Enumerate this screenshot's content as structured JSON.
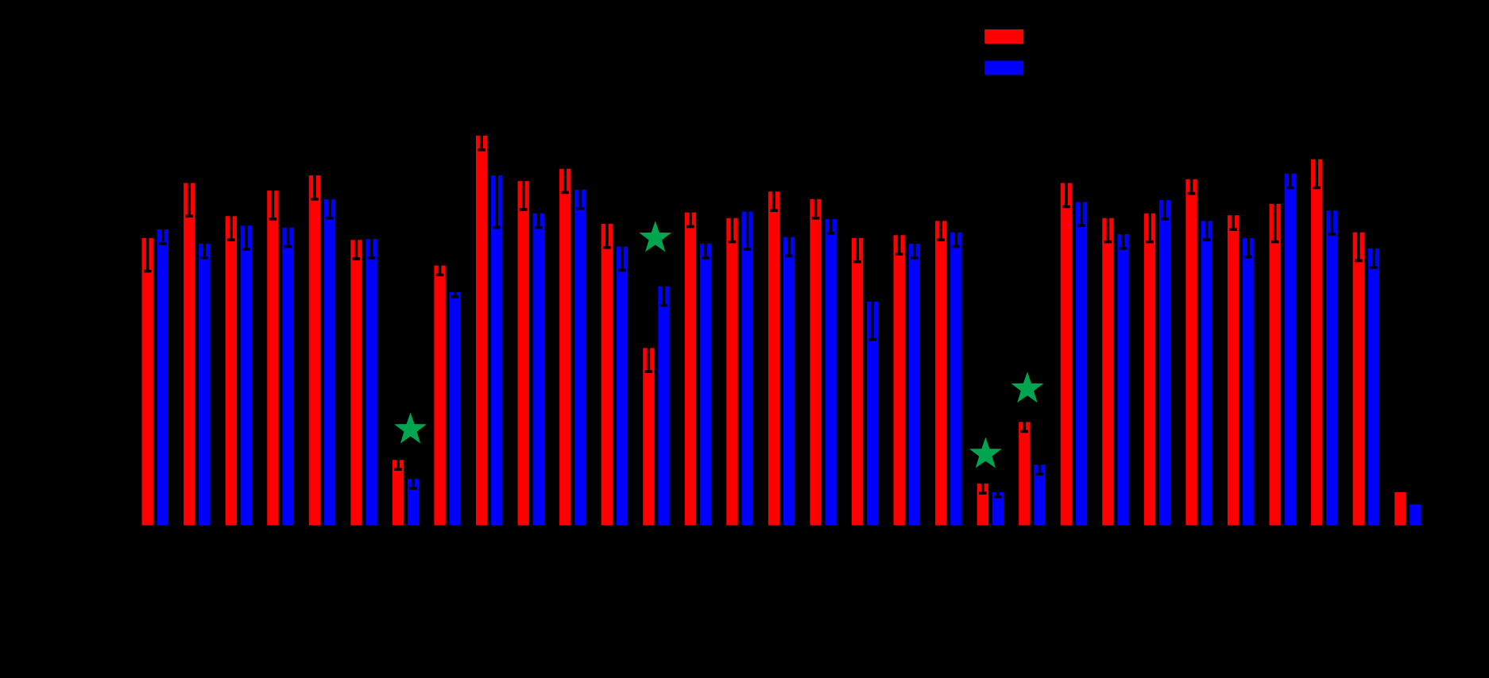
{
  "chart_data": {
    "type": "bar",
    "categories": [
      null,
      null,
      null,
      null,
      null,
      null,
      null,
      null,
      null,
      null,
      null,
      null,
      null,
      null,
      null,
      null,
      null,
      null,
      null,
      null,
      null,
      null,
      null,
      null,
      null,
      null,
      null,
      null,
      null,
      null,
      null
    ],
    "series": [
      {
        "name": null,
        "color": "#ff0000",
        "values": [
          303,
          361,
          326,
          353,
          369,
          301,
          69,
          274,
          411,
          363,
          376,
          318,
          187,
          330,
          324,
          352,
          344,
          303,
          306,
          321,
          44,
          109,
          361,
          324,
          329,
          365,
          327,
          339,
          386,
          309,
          35
        ],
        "errors": [
          35,
          35,
          25,
          30,
          25,
          20,
          10,
          10,
          15,
          30,
          25,
          25,
          25,
          15,
          25,
          20,
          20,
          25,
          20,
          20,
          10,
          10,
          25,
          25,
          30,
          15,
          15,
          40,
          30,
          30,
          0
        ]
      },
      {
        "name": null,
        "color": "#0000ff",
        "values": [
          312,
          297,
          316,
          314,
          344,
          302,
          49,
          246,
          369,
          329,
          354,
          294,
          252,
          297,
          331,
          304,
          323,
          236,
          297,
          309,
          35,
          64,
          341,
          307,
          343,
          321,
          303,
          371,
          332,
          292,
          22
        ],
        "errors": [
          15,
          15,
          25,
          20,
          20,
          20,
          10,
          5,
          55,
          15,
          20,
          25,
          20,
          15,
          40,
          20,
          15,
          40,
          15,
          15,
          5,
          10,
          25,
          15,
          20,
          20,
          20,
          15,
          25,
          20,
          0
        ]
      }
    ],
    "ylim": [
      0,
      500
    ],
    "background": "#000000",
    "error_color": "#000000"
  }
}
